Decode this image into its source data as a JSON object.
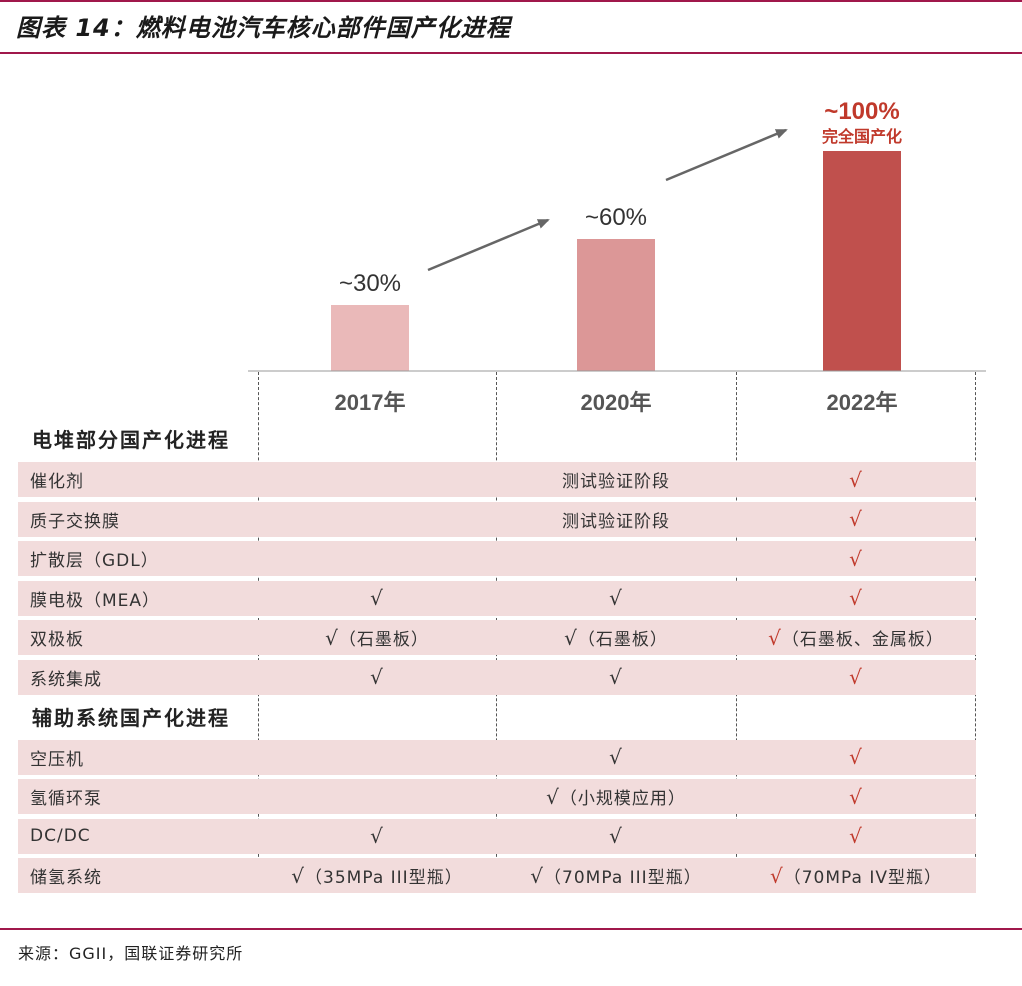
{
  "figure": {
    "title": "图表 14：燃料电池汽车核心部件国产化进程",
    "source": "来源：GGII，国联证券研究所"
  },
  "colors": {
    "accent_rule": "#a0184b",
    "bar_2017": "#eab9b9",
    "bar_2020": "#dc9797",
    "bar_2022": "#c0504d",
    "row_bg": "#f2dcdc",
    "highlight_text": "#c0392b"
  },
  "chart_data": {
    "type": "bar",
    "categories": [
      "2017年",
      "2020年",
      "2022年"
    ],
    "values": [
      30,
      60,
      100
    ],
    "data_labels": [
      "~30%",
      "~60%",
      "~100%"
    ],
    "final_note": "完全国产化",
    "ylim": [
      0,
      100
    ],
    "grid": false,
    "legend": "none"
  },
  "table": {
    "sections": [
      {
        "title": "电堆部分国产化进程",
        "rows": [
          {
            "name": "催化剂",
            "v2017": "",
            "v2020": "测试验证阶段",
            "v2022": "√"
          },
          {
            "name": "质子交换膜",
            "v2017": "",
            "v2020": "测试验证阶段",
            "v2022": "√"
          },
          {
            "name": "扩散层（GDL）",
            "v2017": "",
            "v2020": "",
            "v2022": "√"
          },
          {
            "name": "膜电极（MEA）",
            "v2017": "√",
            "v2020": "√",
            "v2022": "√"
          },
          {
            "name": "双极板",
            "v2017": "√（石墨板）",
            "v2020": "√（石墨板）",
            "v2022": "√（石墨板、金属板）"
          },
          {
            "name": "系统集成",
            "v2017": "√",
            "v2020": "√",
            "v2022": "√"
          }
        ]
      },
      {
        "title": "辅助系统国产化进程",
        "rows": [
          {
            "name": "空压机",
            "v2017": "",
            "v2020": "√",
            "v2022": "√"
          },
          {
            "name": "氢循环泵",
            "v2017": "",
            "v2020": "√（小规模应用）",
            "v2022": "√"
          },
          {
            "name": "DC/DC",
            "v2017": "√",
            "v2020": "√",
            "v2022": "√"
          },
          {
            "name": "储氢系统",
            "v2017": "√（35MPa III型瓶）",
            "v2020": "√（70MPa III型瓶）",
            "v2022": "√（70MPa IV型瓶）"
          }
        ]
      }
    ]
  }
}
